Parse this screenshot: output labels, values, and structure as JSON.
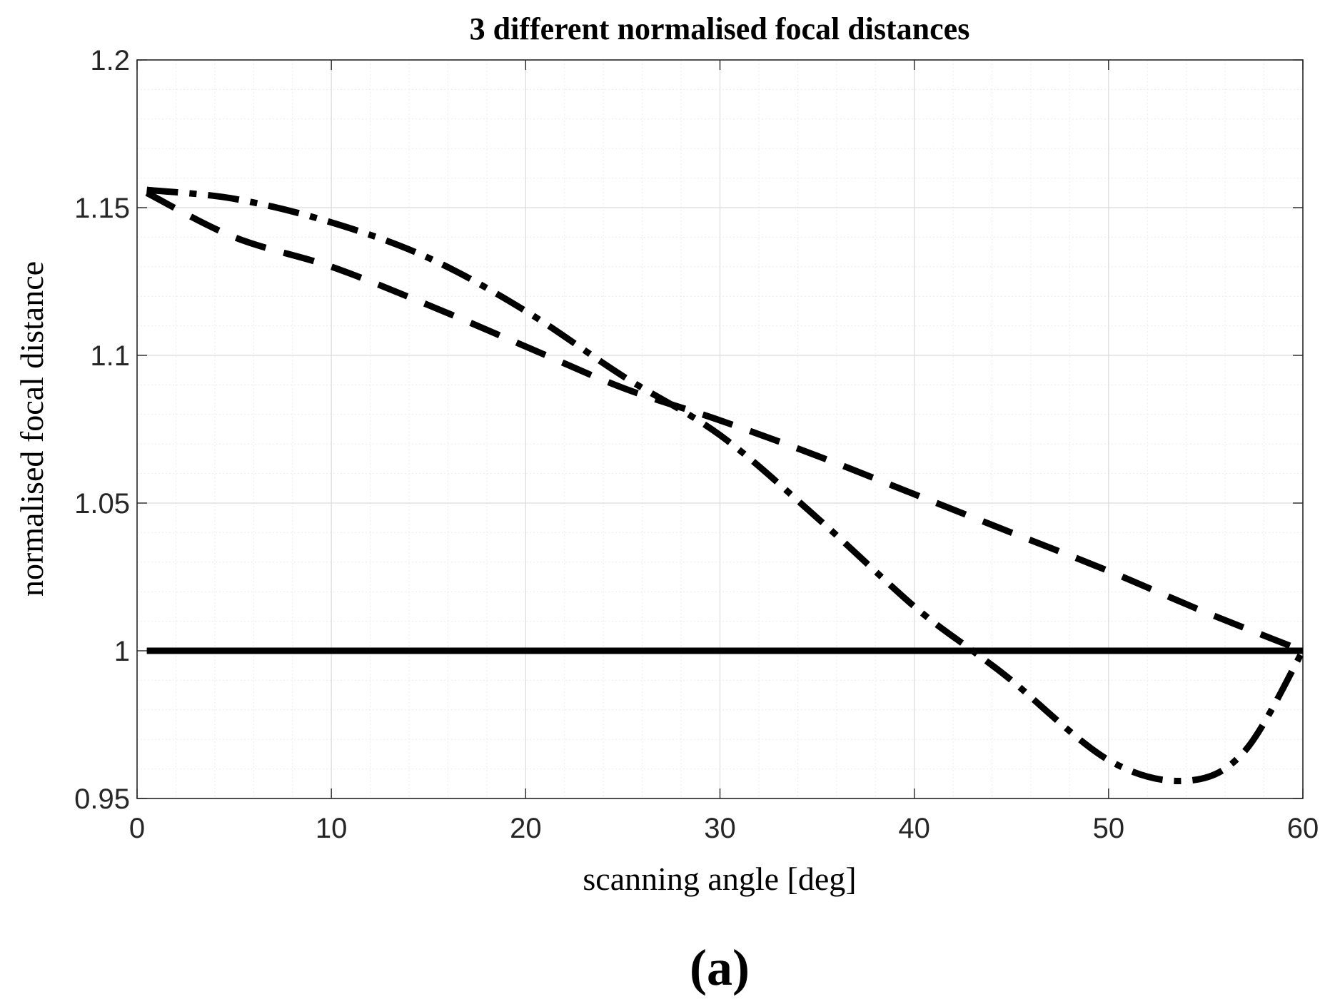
{
  "chart_data": {
    "type": "line",
    "title": "3 different normalised focal distances",
    "xlabel": "scanning angle [deg]",
    "ylabel": "normalised focal distance",
    "xlim": [
      0,
      60
    ],
    "ylim": [
      0.95,
      1.2
    ],
    "xticks": [
      0,
      10,
      20,
      30,
      40,
      50,
      60
    ],
    "yticks": [
      0.95,
      1,
      1.05,
      1.1,
      1.15,
      1.2
    ],
    "xtick_labels": [
      "0",
      "10",
      "20",
      "30",
      "40",
      "50",
      "60"
    ],
    "ytick_labels": [
      "0.95",
      "1",
      "1.05",
      "1.1",
      "1.15",
      "1.2"
    ],
    "grid": true,
    "series": [
      {
        "name": "solid",
        "style": "solid",
        "x": [
          0.5,
          60
        ],
        "y": [
          1.0,
          1.0
        ]
      },
      {
        "name": "dashed",
        "style": "dashed",
        "x": [
          0.5,
          5,
          10,
          15,
          20,
          25,
          30,
          35,
          40,
          45,
          50,
          55,
          60
        ],
        "y": [
          1.155,
          1.14,
          1.13,
          1.117,
          1.103,
          1.089,
          1.078,
          1.066,
          1.053,
          1.04,
          1.027,
          1.013,
          1.0
        ]
      },
      {
        "name": "dash-dot",
        "style": "dashdot",
        "x": [
          0.5,
          5,
          10,
          15,
          20,
          25,
          30,
          35,
          40,
          43,
          45,
          50,
          54,
          57,
          60
        ],
        "y": [
          1.156,
          1.153,
          1.145,
          1.133,
          1.115,
          1.093,
          1.073,
          1.045,
          1.015,
          1.0,
          0.99,
          0.963,
          0.956,
          0.966,
          1.0
        ]
      }
    ]
  },
  "caption": "(a)"
}
